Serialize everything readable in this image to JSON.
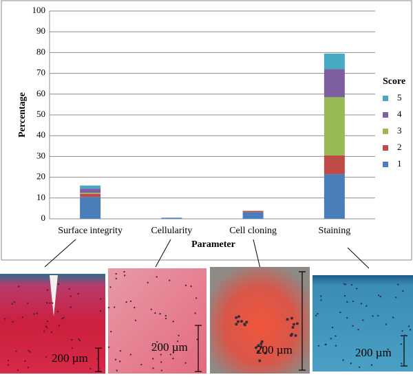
{
  "chart_data": {
    "type": "stacked_bar",
    "x_label": "Parameter",
    "y_label": "Percentage",
    "legend_title": "Score",
    "legend": "right",
    "categories": [
      "Surface integrity",
      "Cellularity",
      "Cell  cloning",
      "Staining"
    ],
    "series": [
      {
        "name": "1",
        "color": "#4a7ebb",
        "values": [
          10.5,
          0.5,
          3.2,
          21.5
        ]
      },
      {
        "name": "2",
        "color": "#be4b48",
        "values": [
          1.5,
          0,
          0.6,
          9
        ]
      },
      {
        "name": "3",
        "color": "#98b954",
        "values": [
          0.5,
          0,
          0,
          28
        ]
      },
      {
        "name": "4",
        "color": "#7d5fa0",
        "values": [
          2,
          0,
          0,
          13.5
        ]
      },
      {
        "name": "5",
        "color": "#46aac5",
        "values": [
          1.5,
          0,
          0,
          7.5
        ]
      }
    ],
    "ylim": [
      0,
      100
    ],
    "yticks": [
      0,
      10,
      20,
      30,
      40,
      50,
      60,
      70,
      80,
      90,
      100
    ],
    "grid": true
  },
  "images": [
    {
      "scale_label": "200  µm"
    },
    {
      "scale_label": "200  µm"
    },
    {
      "scale_label": "200  µm"
    },
    {
      "scale_label": "200  µm"
    }
  ]
}
